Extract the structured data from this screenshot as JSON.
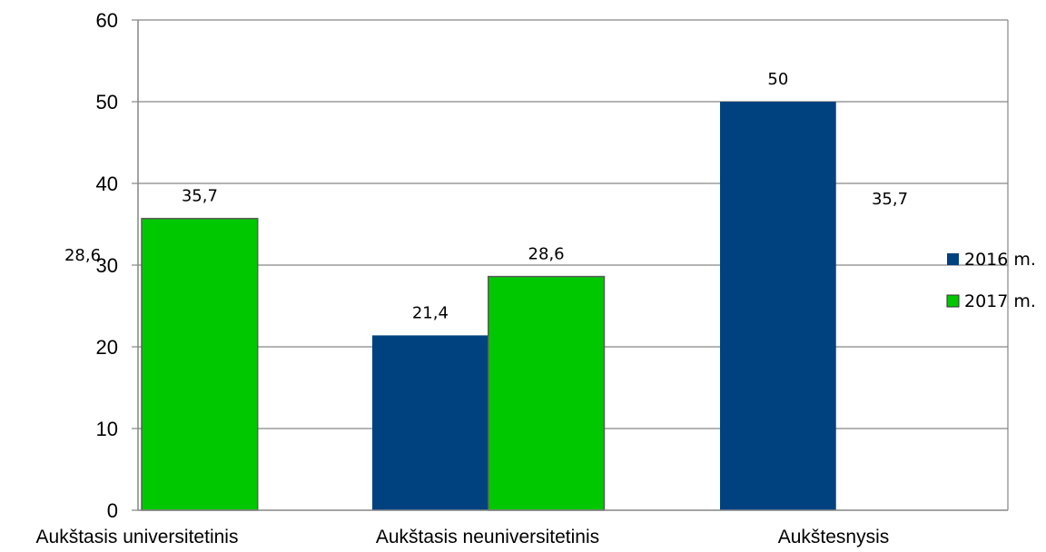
{
  "chart_data": {
    "type": "bar",
    "categories": [
      "Aukštasis universitetinis",
      "Aukštasis neuniversitetinis",
      "Aukštesnysis"
    ],
    "series": [
      {
        "name": "2016 m.",
        "color": "#00427F",
        "values": [
          28.6,
          21.4,
          50
        ],
        "labels": [
          "28,6",
          "21,4",
          "50"
        ]
      },
      {
        "name": "2017 m.",
        "color": "#00C800",
        "values": [
          35.7,
          28.6,
          35.7
        ],
        "labels": [
          "35,7",
          "28,6",
          "35,7"
        ]
      }
    ],
    "y_ticks": [
      "0",
      "10",
      "20",
      "30",
      "40",
      "50",
      "60"
    ],
    "ylim": [
      0,
      60
    ],
    "grid": true,
    "legend": "right"
  }
}
